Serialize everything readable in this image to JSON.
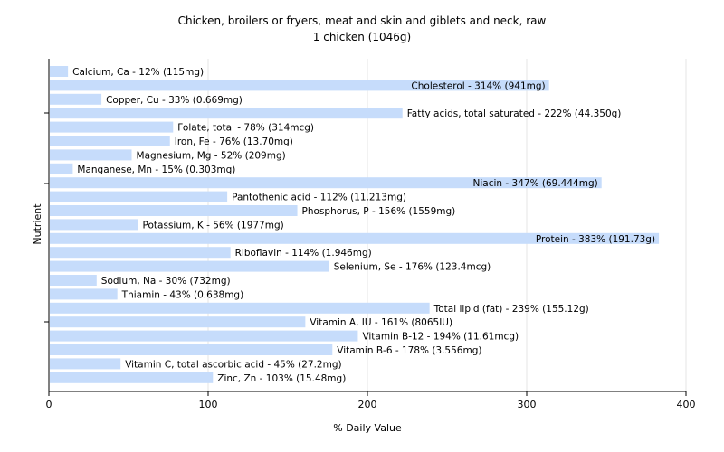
{
  "chart_data": {
    "type": "bar",
    "orientation": "horizontal",
    "title": "Chicken, broilers or fryers, meat and skin and giblets and neck, raw",
    "subtitle": "1 chicken (1046g)",
    "xlabel": "% Daily Value",
    "ylabel": "Nutrient",
    "xlim": [
      0,
      400
    ],
    "xticks": [
      0,
      100,
      200,
      300,
      400
    ],
    "grid": true,
    "bar_color": "#c6dcfb",
    "bars": [
      {
        "name": "Calcium, Ca",
        "value": 12,
        "label": "Calcium, Ca - 12% (115mg)"
      },
      {
        "name": "Cholesterol",
        "value": 314,
        "label": "Cholesterol - 314% (941mg)"
      },
      {
        "name": "Copper, Cu",
        "value": 33,
        "label": "Copper, Cu - 33% (0.669mg)"
      },
      {
        "name": "Fatty acids, total saturated",
        "value": 222,
        "label": "Fatty acids, total saturated - 222% (44.350g)"
      },
      {
        "name": "Folate, total",
        "value": 78,
        "label": "Folate, total - 78% (314mcg)"
      },
      {
        "name": "Iron, Fe",
        "value": 76,
        "label": "Iron, Fe - 76% (13.70mg)"
      },
      {
        "name": "Magnesium, Mg",
        "value": 52,
        "label": "Magnesium, Mg - 52% (209mg)"
      },
      {
        "name": "Manganese, Mn",
        "value": 15,
        "label": "Manganese, Mn - 15% (0.303mg)"
      },
      {
        "name": "Niacin",
        "value": 347,
        "label": "Niacin - 347% (69.444mg)"
      },
      {
        "name": "Pantothenic acid",
        "value": 112,
        "label": "Pantothenic acid - 112% (11.213mg)"
      },
      {
        "name": "Phosphorus, P",
        "value": 156,
        "label": "Phosphorus, P - 156% (1559mg)"
      },
      {
        "name": "Potassium, K",
        "value": 56,
        "label": "Potassium, K - 56% (1977mg)"
      },
      {
        "name": "Protein",
        "value": 383,
        "label": "Protein - 383% (191.73g)"
      },
      {
        "name": "Riboflavin",
        "value": 114,
        "label": "Riboflavin - 114% (1.946mg)"
      },
      {
        "name": "Selenium, Se",
        "value": 176,
        "label": "Selenium, Se - 176% (123.4mcg)"
      },
      {
        "name": "Sodium, Na",
        "value": 30,
        "label": "Sodium, Na - 30% (732mg)"
      },
      {
        "name": "Thiamin",
        "value": 43,
        "label": "Thiamin - 43% (0.638mg)"
      },
      {
        "name": "Total lipid (fat)",
        "value": 239,
        "label": "Total lipid (fat) - 239% (155.12g)"
      },
      {
        "name": "Vitamin A, IU",
        "value": 161,
        "label": "Vitamin A, IU - 161% (8065IU)"
      },
      {
        "name": "Vitamin B-12",
        "value": 194,
        "label": "Vitamin B-12 - 194% (11.61mcg)"
      },
      {
        "name": "Vitamin B-6",
        "value": 178,
        "label": "Vitamin B-6 - 178% (3.556mg)"
      },
      {
        "name": "Vitamin C, total ascorbic acid",
        "value": 45,
        "label": "Vitamin C, total ascorbic acid - 45% (27.2mg)"
      },
      {
        "name": "Zinc, Zn",
        "value": 103,
        "label": "Zinc, Zn - 103% (15.48mg)"
      }
    ]
  }
}
